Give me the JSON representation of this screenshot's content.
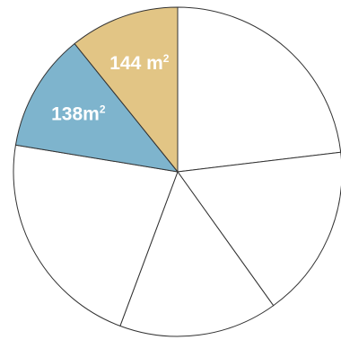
{
  "chart_data": {
    "type": "pie",
    "start_angle_deg": 0,
    "direction": "clockwise",
    "stroke_color": "#333333",
    "slices": [
      {
        "value": 0.231,
        "color": "#ffffff",
        "label_text": "",
        "label_sup": ""
      },
      {
        "value": 0.17,
        "color": "#ffffff",
        "label_text": "",
        "label_sup": ""
      },
      {
        "value": 0.156,
        "color": "#ffffff",
        "label_text": "",
        "label_sup": ""
      },
      {
        "value": 0.219,
        "color": "#ffffff",
        "label_text": "",
        "label_sup": ""
      },
      {
        "value": 0.116,
        "color": "#7eb4cd",
        "label_text": "138m",
        "label_sup": "2"
      },
      {
        "value": 0.108,
        "color": "#e2c585",
        "label_text": "144 m",
        "label_sup": "2"
      }
    ]
  }
}
